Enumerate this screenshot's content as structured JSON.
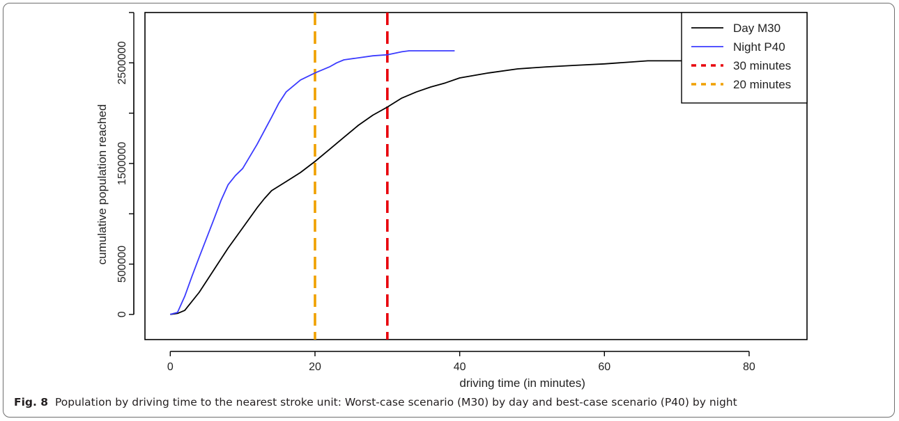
{
  "caption": {
    "label": "Fig. 8",
    "text": "Population by driving time to the nearest stroke unit: Worst-case scenario (M30) by day and best-case scenario (P40) by night"
  },
  "chart_data": {
    "type": "line",
    "title": "",
    "xlabel": "driving time (in minutes)",
    "ylabel": "cumulative population reached",
    "xlim": [
      -3.5,
      88
    ],
    "ylim": [
      -250000,
      3000000
    ],
    "xticks": [
      0,
      20,
      40,
      60,
      80
    ],
    "yticks": [
      0,
      500000,
      1500000,
      2500000
    ],
    "ytick_labels": [
      "0",
      "500000",
      "1500000",
      "2500000"
    ],
    "legend_position": "top-right",
    "series": [
      {
        "name": "Day M30",
        "color": "#000000",
        "x": [
          0,
          1,
          2,
          4,
          6,
          8,
          10,
          12,
          13,
          14,
          16,
          18,
          20,
          22,
          24,
          26,
          28,
          30,
          32,
          34,
          36,
          38,
          40,
          44,
          48,
          52,
          56,
          60,
          64,
          66,
          72
        ],
        "y": [
          0,
          10000,
          40000,
          220000,
          440000,
          660000,
          860000,
          1060000,
          1150000,
          1230000,
          1320000,
          1410000,
          1520000,
          1640000,
          1760000,
          1880000,
          1980000,
          2060000,
          2150000,
          2210000,
          2260000,
          2300000,
          2350000,
          2400000,
          2440000,
          2460000,
          2475000,
          2490000,
          2510000,
          2520000,
          2520000
        ]
      },
      {
        "name": "Night P40",
        "color": "#3b3bff",
        "x": [
          0,
          1,
          2,
          3,
          4,
          6,
          7,
          8,
          9,
          10,
          12,
          14,
          15,
          16,
          18,
          20,
          22,
          23,
          24,
          26,
          28,
          30,
          32,
          33,
          36,
          39.3
        ],
        "y": [
          0,
          20000,
          180000,
          380000,
          570000,
          940000,
          1130000,
          1290000,
          1380000,
          1450000,
          1690000,
          1960000,
          2100000,
          2210000,
          2330000,
          2400000,
          2460000,
          2500000,
          2530000,
          2550000,
          2570000,
          2580000,
          2610000,
          2620000,
          2620000,
          2620000
        ]
      }
    ],
    "reference_lines": [
      {
        "name": "30 minutes",
        "x": 30,
        "color": "#e8000b"
      },
      {
        "name": "20 minutes",
        "x": 20,
        "color": "#f0a000"
      }
    ]
  }
}
